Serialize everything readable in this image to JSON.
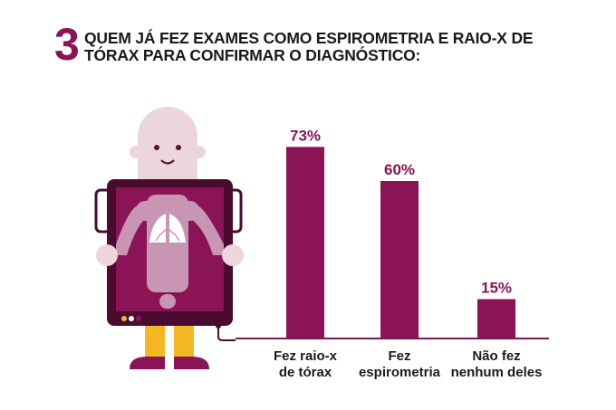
{
  "header": {
    "number": "3",
    "title": "QUEM JÁ FEZ EXAMES COMO ESPIROMETRIA E RAIO-X DE TÓRAX PARA CONFIRMAR O DIAGNÓSTICO:"
  },
  "colors": {
    "accent": "#8a1455",
    "accent_light": "#c995b4",
    "skin": "#ecd6dc",
    "leg_yellow": "#f5b623",
    "text": "#1a1a1a",
    "axis": "#7a1c4c"
  },
  "illustration": {
    "icon": "person-xray-scanner-icon"
  },
  "chart_data": {
    "type": "bar",
    "categories": [
      [
        "Fez raio-x",
        "de tórax"
      ],
      [
        "Fez",
        "espirometria"
      ],
      [
        "Não fez",
        "nenhum deles"
      ]
    ],
    "values": [
      73,
      60,
      15
    ],
    "labels": [
      "73%",
      "60%",
      "15%"
    ],
    "ylim": [
      0,
      80
    ],
    "grid": false,
    "title": "",
    "xlabel": "",
    "ylabel": ""
  }
}
